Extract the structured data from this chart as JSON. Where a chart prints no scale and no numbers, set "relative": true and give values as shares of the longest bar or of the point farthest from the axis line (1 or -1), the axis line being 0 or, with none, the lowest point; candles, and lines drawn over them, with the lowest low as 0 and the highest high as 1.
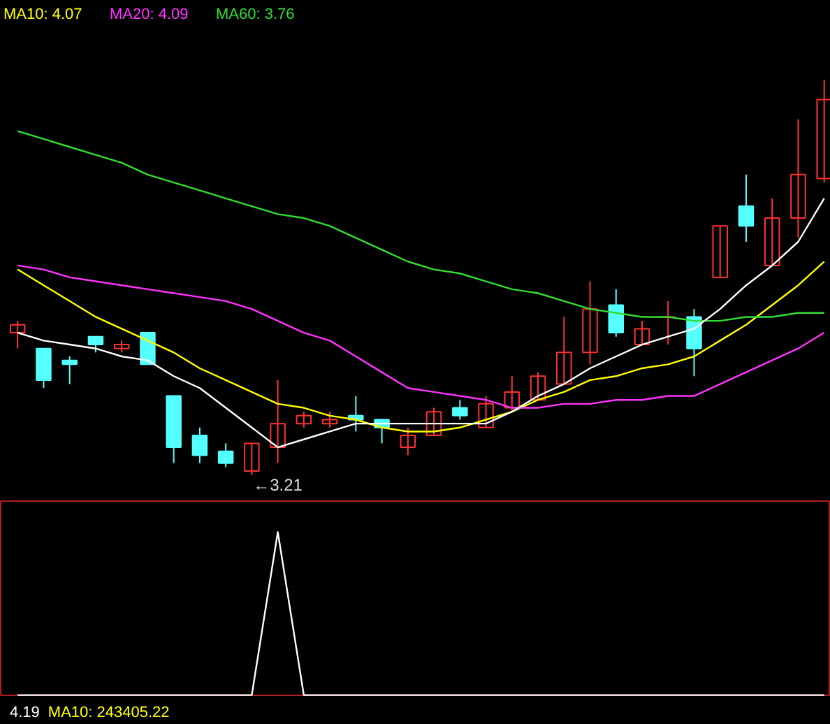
{
  "chart_data": [
    {
      "type": "candlestick",
      "relative": true,
      "legend": "top left",
      "categories": [
        null,
        null,
        null,
        null,
        null,
        null,
        null,
        null,
        null,
        null,
        null,
        null,
        null,
        null,
        null,
        null,
        null,
        null,
        null,
        null,
        null,
        null,
        null,
        null,
        null,
        null,
        null,
        null,
        null,
        null,
        null,
        null
      ],
      "ohlc": [
        [
          0.36,
          0.39,
          0.32,
          0.38
        ],
        [
          0.32,
          0.32,
          0.22,
          0.24
        ],
        [
          0.29,
          0.3,
          0.23,
          0.28
        ],
        [
          0.35,
          0.35,
          0.31,
          0.33
        ],
        [
          0.32,
          0.34,
          0.31,
          0.33
        ],
        [
          0.36,
          0.36,
          0.28,
          0.28
        ],
        [
          0.2,
          0.2,
          0.03,
          0.07
        ],
        [
          0.1,
          0.12,
          0.03,
          0.05
        ],
        [
          0.06,
          0.08,
          0.02,
          0.03
        ],
        [
          0.01,
          0.08,
          0,
          0.08
        ],
        [
          0.07,
          0.24,
          0.03,
          0.13
        ],
        [
          0.13,
          0.16,
          0.12,
          0.15
        ],
        [
          0.13,
          0.16,
          0.12,
          0.14
        ],
        [
          0.15,
          0.2,
          0.11,
          0.14
        ],
        [
          0.14,
          0.14,
          0.08,
          0.12
        ],
        [
          0.07,
          0.12,
          0.05,
          0.1
        ],
        [
          0.1,
          0.17,
          0.1,
          0.16
        ],
        [
          0.17,
          0.19,
          0.14,
          0.15
        ],
        [
          0.12,
          0.2,
          0.12,
          0.18
        ],
        [
          0.17,
          0.25,
          0.16,
          0.21
        ],
        [
          0.19,
          0.26,
          0.19,
          0.25
        ],
        [
          0.23,
          0.4,
          0.23,
          0.31
        ],
        [
          0.31,
          0.49,
          0.28,
          0.42
        ],
        [
          0.43,
          0.47,
          0.35,
          0.36
        ],
        [
          0.33,
          0.39,
          0.33,
          0.37
        ],
        [
          0.4,
          0.44,
          0.33,
          0.4
        ],
        [
          0.4,
          0.42,
          0.25,
          0.32
        ],
        [
          0.5,
          0.63,
          0.5,
          0.63
        ],
        [
          0.68,
          0.76,
          0.59,
          0.63
        ],
        [
          0.53,
          0.7,
          0.53,
          0.65
        ],
        [
          0.65,
          0.9,
          0.6,
          0.76
        ],
        [
          0.75,
          1,
          0.74,
          0.95
        ]
      ],
      "colors": [
        "#ff3232",
        "#54ffff",
        "#54ffff",
        "#54ffff",
        "#ff3232",
        "#54ffff",
        "#54ffff",
        "#54ffff",
        "#54ffff",
        "#ff3232",
        "#ff3232",
        "#ff3232",
        "#ff3232",
        "#54ffff",
        "#54ffff",
        "#ff3232",
        "#ff3232",
        "#54ffff",
        "#ff3232",
        "#ff3232",
        "#ff3232",
        "#ff3232",
        "#ff3232",
        "#54ffff",
        "#ff3232",
        "#ff3232",
        "#54ffff",
        "#ff3232",
        "#54ffff",
        "#ff3232",
        "#ff3232",
        "#ff3232"
      ],
      "series": [
        {
          "type": "line",
          "name": "MA10: 4.07",
          "color": "#ffff00",
          "values": [
            0.52,
            0.48,
            0.44,
            0.4,
            0.37,
            0.34,
            0.31,
            0.27,
            0.24,
            0.21,
            0.18,
            0.17,
            0.15,
            0.14,
            0.12,
            0.11,
            0.11,
            0.12,
            0.14,
            0.16,
            0.19,
            0.21,
            0.24,
            0.25,
            0.27,
            0.28,
            0.3,
            0.34,
            0.38,
            0.43,
            0.48,
            0.54
          ]
        },
        {
          "type": "line",
          "name": "MA20: 4.09",
          "color": "#ff33ff",
          "values": [
            0.53,
            0.52,
            0.5,
            0.49,
            0.48,
            0.47,
            0.46,
            0.45,
            0.44,
            0.42,
            0.39,
            0.36,
            0.34,
            0.3,
            0.26,
            0.22,
            0.21,
            0.2,
            0.19,
            0.17,
            0.17,
            0.18,
            0.18,
            0.19,
            0.19,
            0.2,
            0.2,
            0.23,
            0.26,
            0.29,
            0.32,
            0.36
          ]
        },
        {
          "type": "line",
          "name": "MA60: 3.76",
          "color": "#33dd33",
          "values": [
            0.87,
            0.85,
            0.83,
            0.81,
            0.79,
            0.76,
            0.74,
            0.72,
            0.7,
            0.68,
            0.66,
            0.65,
            0.63,
            0.6,
            0.57,
            0.54,
            0.52,
            0.51,
            0.49,
            0.47,
            0.46,
            0.44,
            0.42,
            0.41,
            0.4,
            0.4,
            0.39,
            0.39,
            0.4,
            0.4,
            0.41,
            0.41
          ]
        },
        {
          "type": "line",
          "color": "#ffffff",
          "values": [
            0.36,
            0.34,
            0.33,
            0.32,
            0.3,
            0.29,
            0.25,
            0.22,
            0.17,
            0.12,
            0.07,
            0.09,
            0.11,
            0.13,
            0.13,
            0.13,
            0.13,
            0.13,
            0.13,
            0.16,
            0.2,
            0.23,
            0.27,
            0.3,
            0.33,
            0.35,
            0.37,
            0.42,
            0.48,
            0.53,
            0.59,
            0.7
          ]
        }
      ],
      "annotations": [
        "←3.21"
      ]
    },
    {
      "type": "line",
      "relative": true,
      "categories": [
        null,
        null,
        null,
        null,
        null,
        null,
        null,
        null,
        null,
        null,
        null,
        null,
        null,
        null,
        null,
        null,
        null,
        null,
        null,
        null,
        null,
        null,
        null,
        null,
        null,
        null,
        null,
        null,
        null,
        null,
        null,
        null
      ],
      "series": [
        {
          "color": "#ffffff",
          "values": [
            0,
            0,
            0,
            0,
            0,
            0,
            0,
            0,
            0,
            0,
            1,
            0,
            0,
            0,
            0,
            0,
            0,
            0,
            0,
            0,
            0,
            0,
            0,
            0,
            0,
            0,
            0,
            0,
            0,
            0,
            0,
            0
          ]
        }
      ],
      "annotations": [
        "4.19",
        "MA10: 243405.22"
      ]
    }
  ]
}
